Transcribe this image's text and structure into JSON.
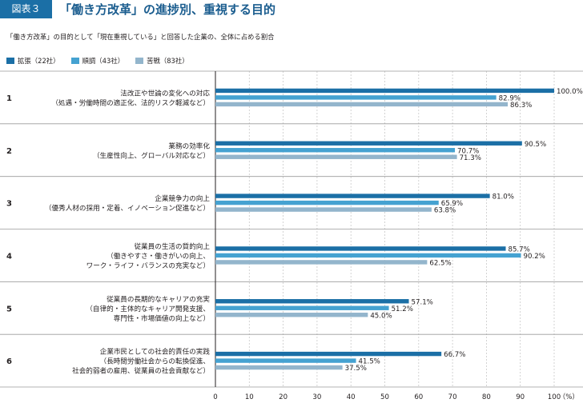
{
  "figure": {
    "badge": "図表３",
    "title": "「働き方改革」の進捗別、重視する目的",
    "subtitle": "「働き方改革」の目的として「現在重視している」と回答した企業の、全体に占める割合"
  },
  "colors": {
    "series1": "#1b6fa6",
    "series2": "#45a2d1",
    "series3": "#93b5cc"
  },
  "chart_data": {
    "type": "bar",
    "orientation": "horizontal",
    "categories": [
      {
        "number": "1",
        "lines": [
          "法改正や世論の変化への対応",
          "（処遇・労働時間の適正化、法的リスク軽減など）"
        ]
      },
      {
        "number": "2",
        "lines": [
          "業務の効率化",
          "（生産性向上、グローバル対応など）"
        ]
      },
      {
        "number": "3",
        "lines": [
          "企業競争力の向上",
          "（優秀人材の採用・定着、イノベーション促進など）"
        ]
      },
      {
        "number": "4",
        "lines": [
          "従業員の生活の質的向上",
          "（働きやすさ・働きがいの向上、",
          "ワーク・ライフ・バランスの充実など）"
        ]
      },
      {
        "number": "5",
        "lines": [
          "従業員の長期的なキャリアの充実",
          "（自律的・主体的なキャリア開発支援、",
          "専門性・市場価値の向上など）"
        ]
      },
      {
        "number": "6",
        "lines": [
          "企業市民としての社会的責任の実践",
          "（長時間労働社会からの転換促進、",
          "社会的弱者の雇用、従業員の社会貢献など）"
        ]
      }
    ],
    "series": [
      {
        "name": "拡張（22社）",
        "values": [
          100.0,
          90.5,
          81.0,
          85.7,
          57.1,
          66.7
        ],
        "labels": [
          "100.0%",
          "90.5%",
          "81.0%",
          "85.7%",
          "57.1%",
          "66.7%"
        ]
      },
      {
        "name": "順調（43社）",
        "values": [
          82.9,
          70.7,
          65.9,
          90.2,
          51.2,
          41.5
        ],
        "labels": [
          "82.9%",
          "70.7%",
          "65.9%",
          "90.2%",
          "51.2%",
          "41.5%"
        ]
      },
      {
        "name": "苦戦（83社）",
        "values": [
          86.3,
          71.3,
          63.8,
          62.5,
          45.0,
          37.5
        ],
        "labels": [
          "86.3%",
          "71.3%",
          "63.8%",
          "62.5%",
          "45.0%",
          "37.5%"
        ]
      }
    ],
    "xlim": [
      0,
      100
    ],
    "xticks": [
      "0",
      "10",
      "20",
      "30",
      "40",
      "50",
      "60",
      "70",
      "80",
      "90",
      "100"
    ],
    "x_unit": "（%）",
    "grid": true
  }
}
